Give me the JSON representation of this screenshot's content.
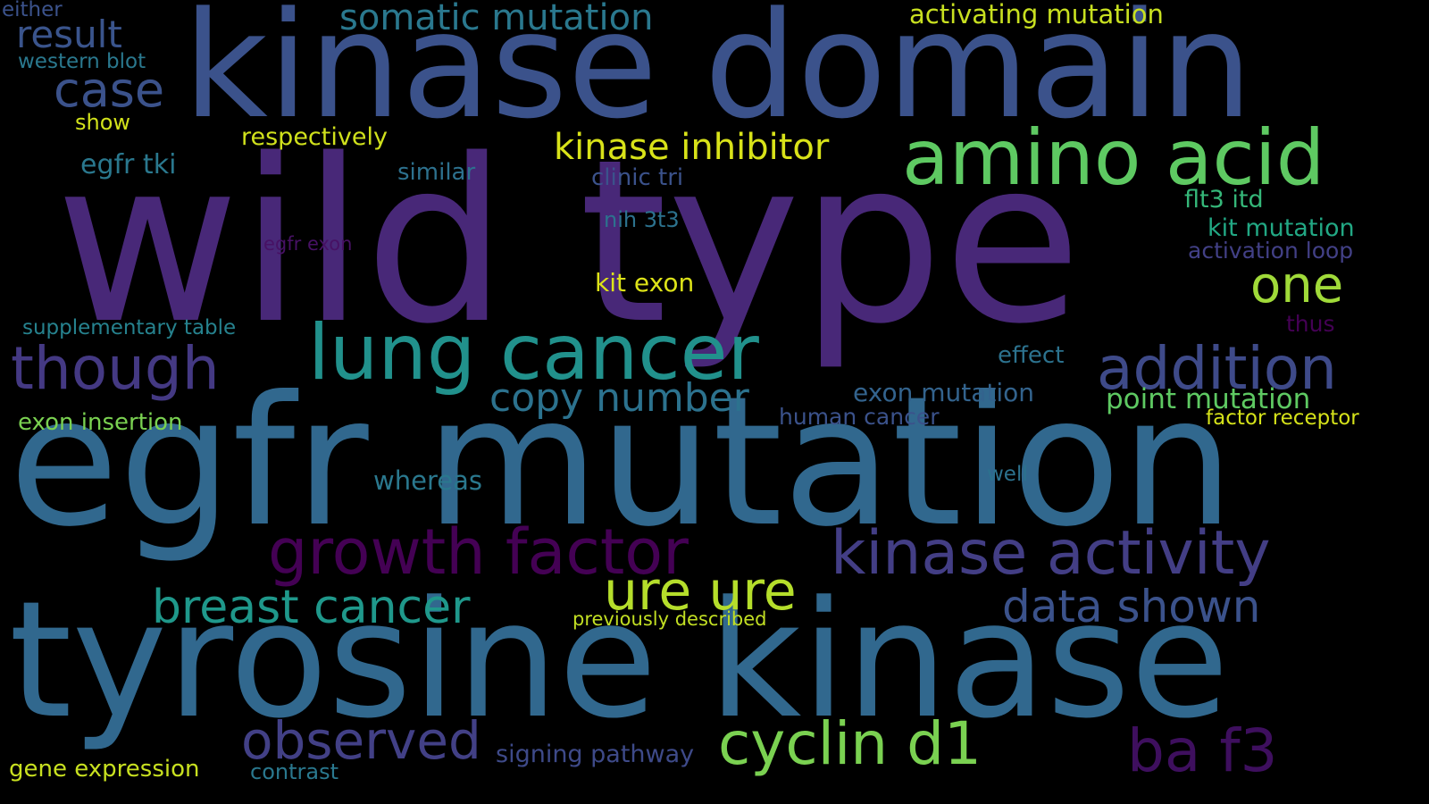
{
  "background": "#000000",
  "words": [
    {
      "text": "kinase domain",
      "color": "#3b528b"
    },
    {
      "text": "wild type",
      "color": "#482878"
    },
    {
      "text": "egfr mutation",
      "color": "#31688e"
    },
    {
      "text": "tyrosine kinase",
      "color": "#31688e"
    },
    {
      "text": "amino acid",
      "color": "#5ec962"
    },
    {
      "text": "lung cancer",
      "color": "#21918c"
    },
    {
      "text": "growth factor",
      "color": "#440154"
    },
    {
      "text": "kinase activity",
      "color": "#433e85"
    },
    {
      "text": "cyclin d1",
      "color": "#7ad151"
    },
    {
      "text": "ure ure",
      "color": "#b5de2b"
    },
    {
      "text": "addition",
      "color": "#3e4a89"
    },
    {
      "text": "though",
      "color": "#443983"
    },
    {
      "text": "observed",
      "color": "#424086"
    },
    {
      "text": "ba f3",
      "color": "#3e0f5e"
    },
    {
      "text": "breast cancer",
      "color": "#1f988b"
    },
    {
      "text": "data shown",
      "color": "#3b528b"
    },
    {
      "text": "copy number",
      "color": "#2c728e"
    },
    {
      "text": "one",
      "color": "#a0da39"
    },
    {
      "text": "kinase inhibitor",
      "color": "#d8e219"
    },
    {
      "text": "somatic mutation",
      "color": "#2a788e"
    },
    {
      "text": "result",
      "color": "#3a548c"
    },
    {
      "text": "case",
      "color": "#3b528b"
    },
    {
      "text": "activating mutation",
      "color": "#c8e020"
    },
    {
      "text": "respectively",
      "color": "#d0e11c"
    },
    {
      "text": "egfr tki",
      "color": "#2a788e"
    },
    {
      "text": "similar",
      "color": "#2d718e"
    },
    {
      "text": "clinic tri",
      "color": "#3b528b"
    },
    {
      "text": "nih 3t3",
      "color": "#2c728e"
    },
    {
      "text": "egfr exon",
      "color": "#471164"
    },
    {
      "text": "kit exon",
      "color": "#dde318"
    },
    {
      "text": "flt3 itd",
      "color": "#35b779"
    },
    {
      "text": "kit mutation",
      "color": "#22a884"
    },
    {
      "text": "activation loop",
      "color": "#424086"
    },
    {
      "text": "thus",
      "color": "#440154"
    },
    {
      "text": "effect",
      "color": "#2c728e"
    },
    {
      "text": "exon mutation",
      "color": "#33638d"
    },
    {
      "text": "point mutation",
      "color": "#5ec962"
    },
    {
      "text": "factor receptor",
      "color": "#d5e21a"
    },
    {
      "text": "human cancer",
      "color": "#3b528b"
    },
    {
      "text": "well",
      "color": "#2c728e"
    },
    {
      "text": "whereas",
      "color": "#2a788e"
    },
    {
      "text": "previously described",
      "color": "#c2df23"
    },
    {
      "text": "signing pathway",
      "color": "#3e4a89"
    },
    {
      "text": "contrast",
      "color": "#2a788e"
    },
    {
      "text": "gene expression",
      "color": "#c8e020"
    },
    {
      "text": "exon insertion",
      "color": "#7ad151"
    },
    {
      "text": "supplementary table",
      "color": "#26828e"
    },
    {
      "text": "western blot",
      "color": "#2a788e"
    },
    {
      "text": "show",
      "color": "#d2e21b"
    },
    {
      "text": "either",
      "color": "#3b528b"
    }
  ]
}
